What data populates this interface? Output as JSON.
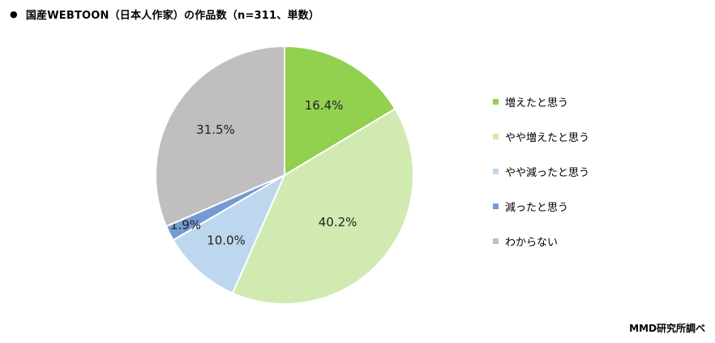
{
  "title": "国産WEBTOON（日本人作家）の作品数（n=311、単数）",
  "bullet": "●",
  "source": "MMD研究所調べ",
  "chart_data": {
    "type": "pie",
    "categories": [
      "増えたと思う",
      "やや増えたと思う",
      "やや減ったと思う",
      "減ったと思う",
      "わからない"
    ],
    "values": [
      16.4,
      40.2,
      10.0,
      1.9,
      31.5
    ],
    "labels": [
      "16.4%",
      "40.2%",
      "10.0%",
      "1.9%",
      "31.5%"
    ],
    "colors": [
      "#92d050",
      "#d0eab2",
      "#bdd7ee",
      "#7799d2",
      "#bfbfbf"
    ],
    "start": "12 o'clock, clockwise",
    "legend_position": "right"
  }
}
